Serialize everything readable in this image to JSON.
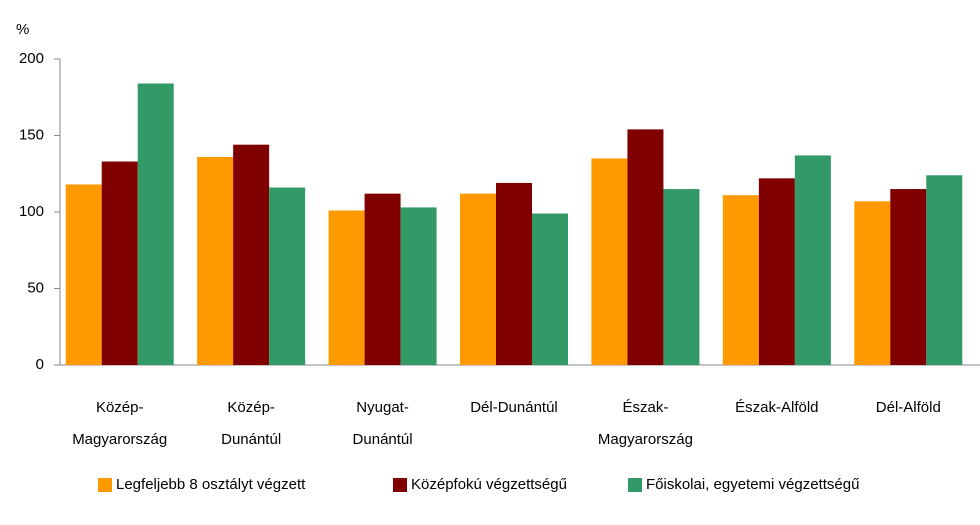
{
  "chart_data": {
    "type": "bar",
    "y_label": "%",
    "categories": [
      [
        "Közép-",
        "Magyarország"
      ],
      [
        "Közép-",
        "Dunántúl"
      ],
      [
        "Nyugat-",
        "Dunántúl"
      ],
      [
        "Dél-Dunántúl"
      ],
      [
        "Észak-",
        "Magyarország"
      ],
      [
        "Észak-Alföld"
      ],
      [
        "Dél-Alföld"
      ]
    ],
    "series": [
      {
        "name": "Legfeljebb 8 osztályt végzett",
        "color": "#ff9900",
        "values": [
          118,
          136,
          101,
          112,
          135,
          111,
          107
        ]
      },
      {
        "name": "Középfokú végzettségű",
        "color": "#800000",
        "values": [
          133,
          144,
          112,
          119,
          154,
          122,
          115
        ]
      },
      {
        "name": "Főiskolai, egyetemi végzettségű",
        "color": "#339966",
        "values": [
          184,
          116,
          103,
          99,
          115,
          137,
          124
        ]
      }
    ],
    "ylim": [
      0,
      200
    ],
    "yticks": [
      0,
      50,
      100,
      150,
      200
    ],
    "grid": false,
    "legend": "bottom"
  }
}
